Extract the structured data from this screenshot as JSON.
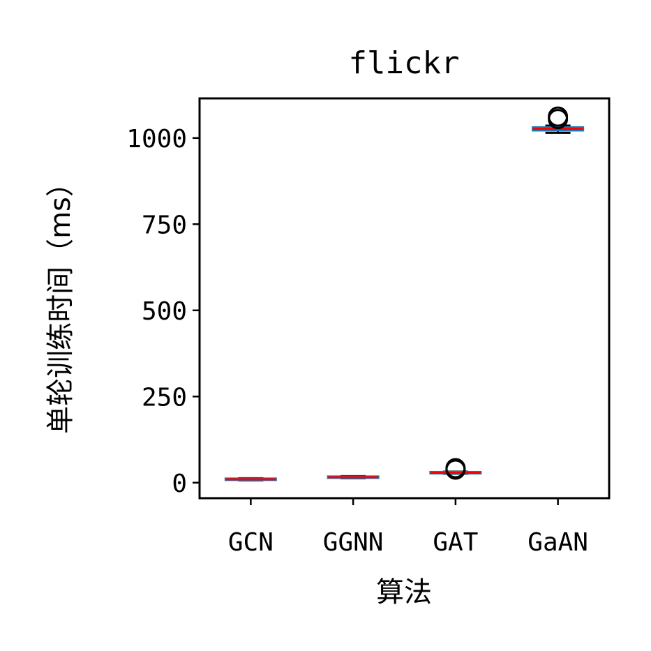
{
  "chart_data": {
    "type": "box",
    "title": "flickr",
    "xlabel": "算法",
    "ylabel": "单轮训练时间（ms）",
    "categories": [
      "GCN",
      "GGNN",
      "GAT",
      "GaAN"
    ],
    "yticks": [
      0,
      250,
      500,
      750,
      1000
    ],
    "ylim": [
      -45,
      1115
    ],
    "boxes": [
      {
        "name": "GCN",
        "q1": 8,
        "median": 10,
        "q3": 12,
        "whisker_low": 7,
        "whisker_high": 13,
        "outliers": []
      },
      {
        "name": "GGNN",
        "q1": 14,
        "median": 16,
        "q3": 18,
        "whisker_low": 13,
        "whisker_high": 19,
        "outliers": []
      },
      {
        "name": "GAT",
        "q1": 27,
        "median": 29,
        "q3": 31,
        "whisker_low": 26,
        "whisker_high": 32,
        "outliers": [
          38,
          42
        ]
      },
      {
        "name": "GaAN",
        "q1": 1022,
        "median": 1027,
        "q3": 1031,
        "whisker_low": 1015,
        "whisker_high": 1036,
        "outliers": [
          1055,
          1062
        ]
      }
    ],
    "colors": {
      "box": "#1f77b4",
      "median": "#ff0000",
      "whisker": "#000000",
      "outlier": "#000000"
    },
    "grid": false,
    "legend": "none"
  }
}
